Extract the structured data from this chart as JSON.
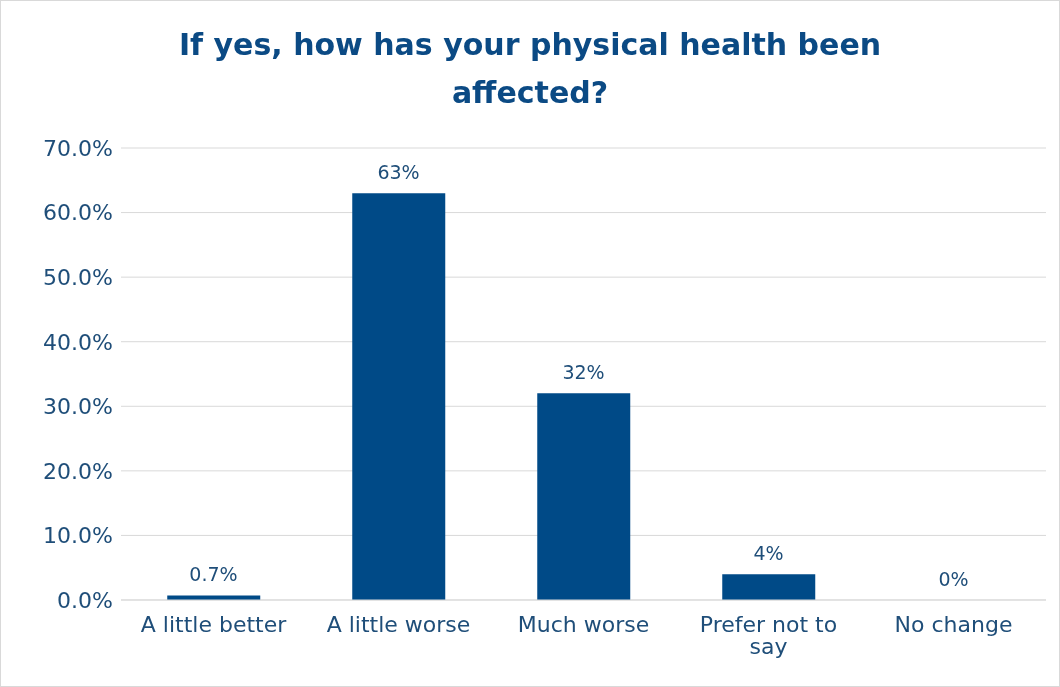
{
  "chart_data": {
    "type": "bar",
    "title": "If yes, how has your physical health been affected?",
    "categories": [
      "A little better",
      "A little worse",
      "Much worse",
      "Prefer not to say",
      "No change"
    ],
    "values": [
      0.7,
      63,
      32,
      4,
      0
    ],
    "value_labels": [
      "0.7%",
      "63%",
      "32%",
      "4%",
      "0%"
    ],
    "color": "#004a87",
    "ylim": [
      0,
      70
    ],
    "yticks": [
      {
        "value": 0,
        "label": "0.0%"
      },
      {
        "value": 10,
        "label": "10.0%"
      },
      {
        "value": 20,
        "label": "20.0%"
      },
      {
        "value": 30,
        "label": "30.0%"
      },
      {
        "value": 40,
        "label": "40.0%"
      },
      {
        "value": 50,
        "label": "50.0%"
      },
      {
        "value": 60,
        "label": "60.0%"
      },
      {
        "value": 70,
        "label": "70.0%"
      }
    ],
    "grid": "y",
    "legend": false
  }
}
